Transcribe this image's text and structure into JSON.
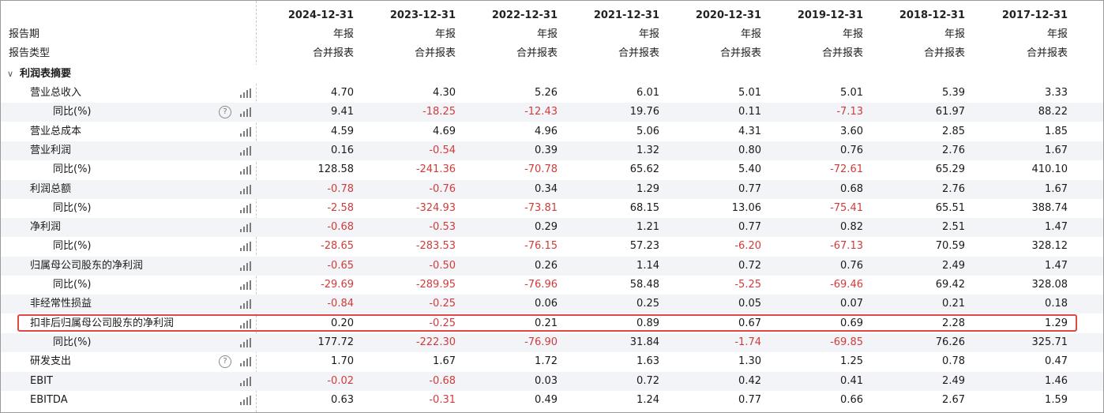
{
  "header": {
    "report_period_label": "报告期",
    "report_type_label": "报告类型",
    "columns": [
      {
        "date": "2024-12-31",
        "period": "年报",
        "type": "合并报表"
      },
      {
        "date": "2023-12-31",
        "period": "年报",
        "type": "合并报表"
      },
      {
        "date": "2022-12-31",
        "period": "年报",
        "type": "合并报表"
      },
      {
        "date": "2021-12-31",
        "period": "年报",
        "type": "合并报表"
      },
      {
        "date": "2020-12-31",
        "period": "年报",
        "type": "合并报表"
      },
      {
        "date": "2019-12-31",
        "period": "年报",
        "type": "合并报表"
      },
      {
        "date": "2018-12-31",
        "period": "年报",
        "type": "合并报表"
      },
      {
        "date": "2017-12-31",
        "period": "年报",
        "type": "合并报表"
      }
    ]
  },
  "section": {
    "label": "利润表摘要",
    "expanded": true,
    "caret_icon": "chevron-down-icon"
  },
  "rows": [
    {
      "label": "营业总收入",
      "indent": 1,
      "help": false,
      "values": [
        "4.70",
        "4.30",
        "5.26",
        "6.01",
        "5.01",
        "5.01",
        "5.39",
        "3.33"
      ]
    },
    {
      "label": "同比(%)",
      "indent": 2,
      "help": true,
      "values": [
        "9.41",
        "-18.25",
        "-12.43",
        "19.76",
        "0.11",
        "-7.13",
        "61.97",
        "88.22"
      ]
    },
    {
      "label": "营业总成本",
      "indent": 1,
      "help": false,
      "values": [
        "4.59",
        "4.69",
        "4.96",
        "5.06",
        "4.31",
        "3.60",
        "2.85",
        "1.85"
      ]
    },
    {
      "label": "营业利润",
      "indent": 1,
      "help": false,
      "values": [
        "0.16",
        "-0.54",
        "0.39",
        "1.32",
        "0.80",
        "0.76",
        "2.76",
        "1.67"
      ]
    },
    {
      "label": "同比(%)",
      "indent": 2,
      "help": false,
      "values": [
        "128.58",
        "-241.36",
        "-70.78",
        "65.62",
        "5.40",
        "-72.61",
        "65.29",
        "410.10"
      ]
    },
    {
      "label": "利润总额",
      "indent": 1,
      "help": false,
      "values": [
        "-0.78",
        "-0.76",
        "0.34",
        "1.29",
        "0.77",
        "0.68",
        "2.76",
        "1.67"
      ]
    },
    {
      "label": "同比(%)",
      "indent": 2,
      "help": false,
      "values": [
        "-2.58",
        "-324.93",
        "-73.81",
        "68.15",
        "13.06",
        "-75.41",
        "65.51",
        "388.74"
      ]
    },
    {
      "label": "净利润",
      "indent": 1,
      "help": false,
      "values": [
        "-0.68",
        "-0.53",
        "0.29",
        "1.21",
        "0.77",
        "0.82",
        "2.51",
        "1.47"
      ]
    },
    {
      "label": "同比(%)",
      "indent": 2,
      "help": false,
      "values": [
        "-28.65",
        "-283.53",
        "-76.15",
        "57.23",
        "-6.20",
        "-67.13",
        "70.59",
        "328.12"
      ]
    },
    {
      "label": "归属母公司股东的净利润",
      "indent": 1,
      "help": false,
      "values": [
        "-0.65",
        "-0.50",
        "0.26",
        "1.14",
        "0.72",
        "0.76",
        "2.49",
        "1.47"
      ]
    },
    {
      "label": "同比(%)",
      "indent": 2,
      "help": false,
      "values": [
        "-29.69",
        "-289.95",
        "-76.96",
        "58.48",
        "-5.25",
        "-69.46",
        "69.42",
        "328.08"
      ]
    },
    {
      "label": "非经常性损益",
      "indent": 1,
      "help": false,
      "values": [
        "-0.84",
        "-0.25",
        "0.06",
        "0.25",
        "0.05",
        "0.07",
        "0.21",
        "0.18"
      ]
    },
    {
      "label": "扣非后归属母公司股东的净利润",
      "indent": 1,
      "help": false,
      "highlighted": true,
      "values": [
        "0.20",
        "-0.25",
        "0.21",
        "0.89",
        "0.67",
        "0.69",
        "2.28",
        "1.29"
      ]
    },
    {
      "label": "同比(%)",
      "indent": 2,
      "help": false,
      "values": [
        "177.72",
        "-222.30",
        "-76.90",
        "31.84",
        "-1.74",
        "-69.85",
        "76.26",
        "325.71"
      ]
    },
    {
      "label": "研发支出",
      "indent": 1,
      "help": true,
      "values": [
        "1.70",
        "1.67",
        "1.72",
        "1.63",
        "1.30",
        "1.25",
        "0.78",
        "0.47"
      ]
    },
    {
      "label": "EBIT",
      "indent": 1,
      "help": false,
      "values": [
        "-0.02",
        "-0.68",
        "0.03",
        "0.72",
        "0.42",
        "0.41",
        "2.49",
        "1.46"
      ]
    },
    {
      "label": "EBITDA",
      "indent": 1,
      "help": false,
      "values": [
        "0.63",
        "-0.31",
        "0.49",
        "1.24",
        "0.77",
        "0.66",
        "2.67",
        "1.59"
      ]
    }
  ],
  "icons": {
    "row_chart": "bar-chart-icon",
    "help": "help-circle-icon",
    "help_glyph": "?"
  },
  "colors": {
    "negative": "#d23b3b",
    "highlight_border": "#e04848",
    "alt_row": "#f2f4f7"
  }
}
